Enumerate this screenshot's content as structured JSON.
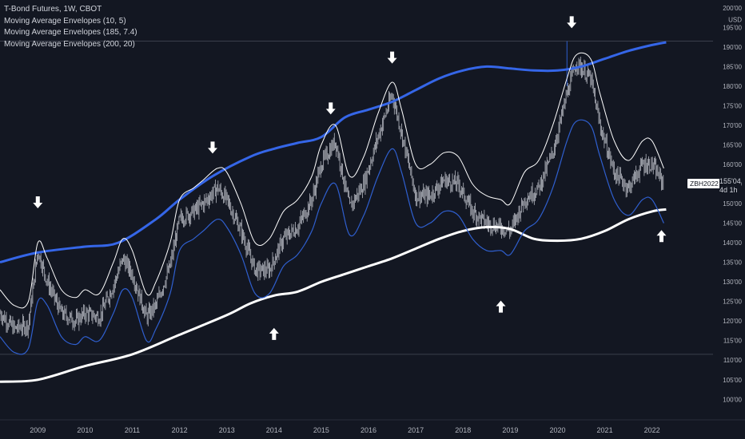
{
  "legend": {
    "title": "T-Bond Futures, 1W, CBOT",
    "indicators": [
      "Moving Average Envelopes (10, 5)",
      "Moving Average Envelopes (185, 7.4)",
      "Moving Average Envelopes (200, 20)"
    ]
  },
  "ticker": {
    "symbol": "ZBH2022",
    "price": "155'04",
    "countdown": "4d 1h"
  },
  "colors": {
    "background": "#131722",
    "candles": "#d1d4dc",
    "envelope_10_5": "#ffffff",
    "envelope_10_5_lower": "#2f5fcf",
    "envelope_185_upper": "#3566e8",
    "envelope_200_lower": "#ffffff",
    "axis_text": "#b2b5be",
    "markers": "#ffffff"
  },
  "chart_data": {
    "type": "line",
    "y_axis": {
      "unit_label": "USD",
      "ylim": [
        97,
        202
      ],
      "ticks": [
        "200'00",
        "195'00",
        "190'00",
        "185'00",
        "180'00",
        "175'00",
        "170'00",
        "165'00",
        "160'00",
        "155'00",
        "150'00",
        "145'00",
        "140'00",
        "135'00",
        "130'00",
        "125'00",
        "120'00",
        "115'00",
        "110'00",
        "105'00",
        "100'00"
      ],
      "tick_values": [
        200,
        195,
        190,
        185,
        180,
        175,
        170,
        165,
        160,
        155,
        150,
        145,
        140,
        135,
        130,
        125,
        120,
        115,
        110,
        105,
        100
      ]
    },
    "x_axis": {
      "xlim": [
        2008.2,
        2022.75
      ],
      "ticks": [
        "2009",
        "2010",
        "2011",
        "2012",
        "2013",
        "2014",
        "2015",
        "2016",
        "2017",
        "2018",
        "2019",
        "2020",
        "2021",
        "2022"
      ],
      "tick_values": [
        2009,
        2010,
        2011,
        2012,
        2013,
        2014,
        2015,
        2016,
        2017,
        2018,
        2019,
        2020,
        2021,
        2022
      ]
    },
    "horizontal_lines": [
      191.5,
      111.5
    ],
    "current_price": 155.1,
    "series": [
      {
        "name": "Moving Average Envelopes (185, 7.4)",
        "role": "upper",
        "x": [
          2008.2,
          2009.0,
          2010.0,
          2010.7,
          2011.5,
          2012.0,
          2012.7,
          2013.5,
          2014.0,
          2014.5,
          2015.0,
          2015.5,
          2016.0,
          2016.5,
          2017.0,
          2017.5,
          2018.0,
          2018.5,
          2019.0,
          2019.5,
          2020.0,
          2020.5,
          2021.0,
          2021.5,
          2022.0,
          2022.3
        ],
        "values": [
          135,
          137.5,
          139,
          140,
          146,
          151,
          157,
          162,
          164,
          165.5,
          167,
          172,
          174,
          176,
          179,
          182,
          184,
          185,
          184.5,
          184,
          184,
          185,
          187,
          189,
          190.5,
          191.2
        ]
      },
      {
        "name": "Moving Average Envelopes (200, 20)",
        "role": "lower",
        "x": [
          2008.2,
          2009.0,
          2010.0,
          2011.0,
          2012.0,
          2013.0,
          2013.5,
          2014.0,
          2014.5,
          2015.0,
          2015.5,
          2016.0,
          2016.5,
          2017.0,
          2017.5,
          2018.0,
          2018.5,
          2019.0,
          2019.5,
          2020.0,
          2020.5,
          2021.0,
          2021.5,
          2022.0,
          2022.3
        ],
        "values": [
          104.5,
          105,
          108.5,
          111.5,
          116.5,
          121.5,
          124.5,
          126.5,
          127.5,
          130,
          132,
          134,
          136,
          138.5,
          141,
          143,
          144,
          143.5,
          141,
          140.5,
          141,
          143,
          146,
          148,
          148.5
        ]
      },
      {
        "name": "Moving Average Envelopes (10, 5)",
        "role": "upper",
        "x": [
          2008.2,
          2008.5,
          2008.8,
          2009.0,
          2009.2,
          2009.5,
          2009.8,
          2010.0,
          2010.3,
          2010.6,
          2010.8,
          2011.0,
          2011.3,
          2011.5,
          2011.8,
          2012.0,
          2012.3,
          2012.5,
          2012.8,
          2013.0,
          2013.3,
          2013.6,
          2013.9,
          2014.2,
          2014.5,
          2014.8,
          2015.0,
          2015.3,
          2015.6,
          2015.9,
          2016.2,
          2016.5,
          2016.7,
          2017.0,
          2017.3,
          2017.6,
          2017.9,
          2018.2,
          2018.5,
          2018.8,
          2019.0,
          2019.3,
          2019.6,
          2019.9,
          2020.2,
          2020.4,
          2020.7,
          2020.9,
          2021.2,
          2021.5,
          2021.8,
          2022.0,
          2022.25
        ],
        "values": [
          128,
          124,
          125,
          140,
          136,
          128,
          126,
          128,
          127,
          135,
          141,
          138,
          127,
          130,
          140,
          151,
          154,
          156,
          159,
          158,
          150,
          140,
          141,
          148,
          151,
          157,
          165,
          170,
          157,
          162,
          173,
          181,
          174,
          160,
          160,
          163,
          162,
          155,
          152,
          151,
          150,
          158,
          161,
          170,
          182,
          188,
          187,
          178,
          166,
          161,
          166,
          166,
          159
        ]
      },
      {
        "name": "Moving Average Envelopes (10, 5)",
        "role": "lower",
        "x": [
          2008.2,
          2008.5,
          2008.8,
          2009.0,
          2009.2,
          2009.5,
          2009.8,
          2010.0,
          2010.3,
          2010.6,
          2010.8,
          2011.0,
          2011.3,
          2011.5,
          2011.8,
          2012.0,
          2012.3,
          2012.5,
          2012.8,
          2013.0,
          2013.3,
          2013.6,
          2013.9,
          2014.2,
          2014.5,
          2014.8,
          2015.0,
          2015.3,
          2015.6,
          2015.9,
          2016.2,
          2016.5,
          2016.7,
          2017.0,
          2017.3,
          2017.6,
          2017.9,
          2018.2,
          2018.5,
          2018.8,
          2019.0,
          2019.3,
          2019.6,
          2019.9,
          2020.2,
          2020.4,
          2020.7,
          2020.9,
          2021.2,
          2021.5,
          2021.8,
          2022.0,
          2022.25
        ],
        "values": [
          116,
          112,
          113,
          125,
          124,
          116,
          114,
          116,
          115,
          122,
          128,
          126,
          115,
          118,
          127,
          138,
          141,
          143,
          146,
          144,
          137,
          127,
          127,
          134,
          137,
          143,
          150,
          155,
          142,
          147,
          157,
          164,
          158,
          145,
          145,
          148,
          147,
          141,
          138,
          138,
          137,
          143,
          146,
          154,
          166,
          171,
          170,
          162,
          151,
          147,
          151,
          151,
          145
        ]
      },
      {
        "name": "T-Bond Futures",
        "role": "price",
        "x": [
          2008.2,
          2008.5,
          2008.8,
          2009.0,
          2009.2,
          2009.5,
          2009.8,
          2010.0,
          2010.3,
          2010.6,
          2010.8,
          2011.0,
          2011.3,
          2011.5,
          2011.8,
          2012.0,
          2012.3,
          2012.5,
          2012.8,
          2013.0,
          2013.3,
          2013.6,
          2013.9,
          2014.2,
          2014.5,
          2014.8,
          2015.0,
          2015.3,
          2015.6,
          2015.9,
          2016.2,
          2016.5,
          2016.7,
          2017.0,
          2017.3,
          2017.6,
          2017.9,
          2018.2,
          2018.5,
          2018.8,
          2019.0,
          2019.3,
          2019.6,
          2019.9,
          2020.2,
          2020.4,
          2020.7,
          2020.9,
          2021.2,
          2021.5,
          2021.8,
          2022.0,
          2022.25
        ],
        "values": [
          122,
          118,
          119,
          138,
          130,
          122,
          120,
          122,
          121,
          129,
          136,
          132,
          121,
          124,
          134,
          146,
          148,
          150,
          154,
          151,
          143,
          133,
          133,
          141,
          144,
          151,
          160,
          166,
          149,
          155,
          167,
          178,
          168,
          152,
          152,
          156,
          155,
          148,
          145,
          144,
          143,
          151,
          154,
          163,
          178,
          186,
          182,
          170,
          158,
          154,
          160,
          160,
          155
        ]
      }
    ],
    "annotations": [
      {
        "type": "arrow-down",
        "x": 2009.0,
        "y": 150
      },
      {
        "type": "arrow-down",
        "x": 2012.7,
        "y": 164
      },
      {
        "type": "arrow-down",
        "x": 2015.2,
        "y": 174
      },
      {
        "type": "arrow-down",
        "x": 2016.5,
        "y": 187
      },
      {
        "type": "arrow-down",
        "x": 2020.3,
        "y": 196
      },
      {
        "type": "arrow-up",
        "x": 2014.0,
        "y": 117
      },
      {
        "type": "arrow-up",
        "x": 2018.8,
        "y": 124
      },
      {
        "type": "arrow-up",
        "x": 2022.2,
        "y": 142
      }
    ]
  }
}
